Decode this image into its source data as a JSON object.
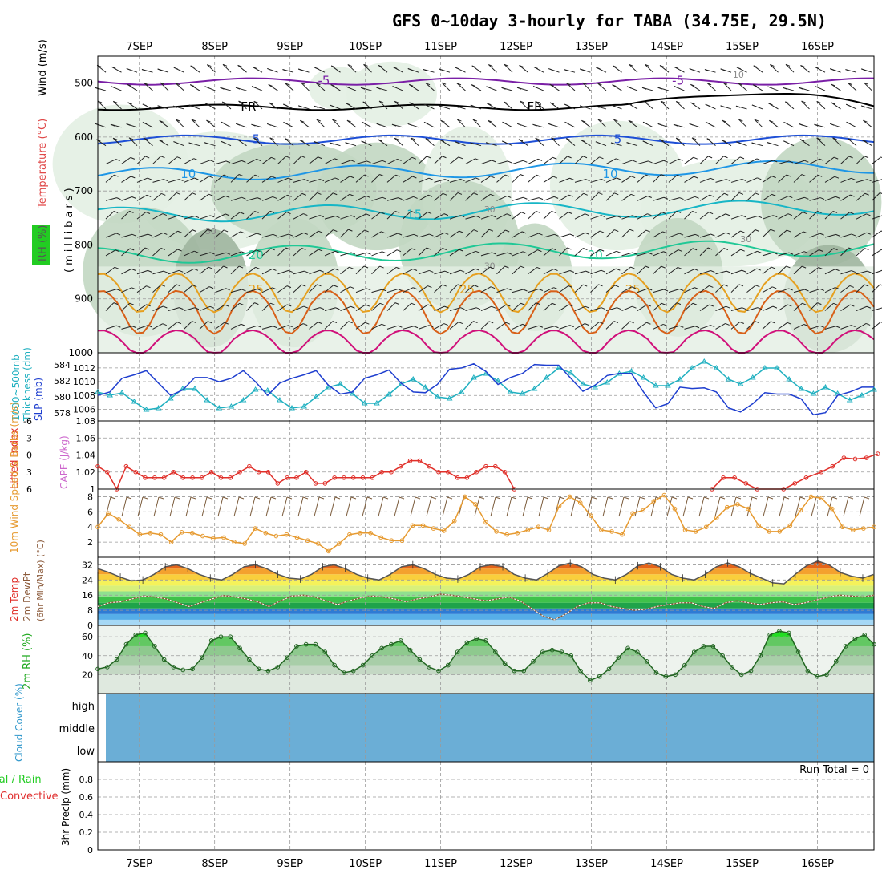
{
  "title": "GFS 0~10day 3-hourly for TABA (34.75E, 29.5N)",
  "dates": [
    "7SEP",
    "8SEP",
    "9SEP",
    "10SEP",
    "11SEP",
    "12SEP",
    "13SEP",
    "14SEP",
    "15SEP",
    "16SEP"
  ],
  "colors": {
    "purple": "#7a1fa6",
    "black": "#000000",
    "blue": "#1e4fd6",
    "skyblue": "#1e96e6",
    "cyan": "#17b6c6",
    "teal": "#20c896",
    "orange": "#e6a020",
    "darkorange": "#d86018",
    "magenta": "#d0107a",
    "rhfill1": "#e3efe3",
    "rhfill2": "#c2d7c2",
    "rhfill3": "#9fb59f",
    "slp": "#1f3fcf",
    "thick": "#20b0c0",
    "li": "#e0302a",
    "wind": "#e69a30",
    "barb": "#7a5a3a",
    "rh2m": "#22cc22",
    "cloud": "#6baed6",
    "dew": "#8b5a3a"
  },
  "chart_data": [
    {
      "type": "contour",
      "panel": "upper-air",
      "title": "Temperature (°C) / Wind (m/s) / RH (%)",
      "ylabel_parts": [
        "RH (%)",
        "Temperature (°C)",
        "Wind (m/s)"
      ],
      "ylabel2": "(millibars)",
      "yticks": [
        500,
        600,
        700,
        800,
        900,
        1000
      ],
      "ylim": [
        450,
        1000
      ],
      "isotherms": [
        {
          "label": "-5",
          "level": 497,
          "amp": 6,
          "color_key": "purple",
          "labels": [
            {
              "text": "-5",
              "day": 3.0
            },
            {
              "text": "-5",
              "day": 7.7
            }
          ]
        },
        {
          "label": "FR",
          "level": 545,
          "amp": 5,
          "color_key": "black",
          "labels": [
            {
              "text": "FR",
              "day": 2.0
            },
            {
              "text": "FR",
              "day": 5.8
            }
          ]
        },
        {
          "label": "5",
          "level": 605,
          "amp": 8,
          "color_key": "blue",
          "labels": [
            {
              "text": "5",
              "day": 2.1
            },
            {
              "text": "5",
              "day": 6.9
            }
          ]
        },
        {
          "label": "10",
          "level": 670,
          "amp": 12,
          "color_key": "skyblue",
          "labels": [
            {
              "text": "10",
              "day": 1.2
            },
            {
              "text": "10",
              "day": 6.8
            }
          ]
        },
        {
          "label": "15",
          "level": 745,
          "amp": 14,
          "color_key": "cyan",
          "labels": [
            {
              "text": "15",
              "day": 4.2
            }
          ]
        },
        {
          "label": "20",
          "level": 820,
          "amp": 15,
          "color_key": "teal",
          "labels": [
            {
              "text": "20",
              "day": 2.1
            },
            {
              "text": "20",
              "day": 6.6
            }
          ]
        },
        {
          "label": "25",
          "level": 880,
          "amp": 45,
          "color_key": "orange",
          "labels": [
            {
              "text": "25",
              "day": 4.9
            },
            {
              "text": "25",
              "day": 2.1
            },
            {
              "text": "25",
              "day": 7.1
            }
          ]
        },
        {
          "label": "30",
          "level": 915,
          "amp": 50,
          "color_key": "darkorange",
          "labels": []
        },
        {
          "label": "35",
          "level": 975,
          "amp": 28,
          "color_key": "magenta",
          "labels": []
        }
      ],
      "rh_labels": [
        {
          "text": "10",
          "day": 8.5,
          "p": 490
        },
        {
          "text": "30",
          "day": 1.5,
          "p": 780
        },
        {
          "text": "30",
          "day": 8.6,
          "p": 795
        },
        {
          "text": "30",
          "day": 5.2,
          "p": 740
        },
        {
          "text": "30",
          "day": 5.2,
          "p": 845
        }
      ]
    },
    {
      "type": "line",
      "panel": "slp-thickness",
      "ylabel_left": "Thickness (dm)",
      "ylabel_left_top": "1000~500mb",
      "ylabel_right": "SLP (mb)",
      "thickness_ticks": [
        578,
        580,
        582,
        584
      ],
      "slp_ticks": [
        1006,
        1008,
        1010,
        1012
      ],
      "thickness_range": [
        577,
        585.5
      ],
      "slp_range": [
        1004.3,
        1014.2
      ],
      "slp": [
        1008,
        1008.5,
        1010.5,
        1011,
        1011.6,
        1009.8,
        1008,
        1008.8,
        1010.6,
        1010.6,
        1010,
        1010.5,
        1011.6,
        1010,
        1008,
        1009.8,
        1010.5,
        1011,
        1011.6,
        1009.5,
        1008.2,
        1008.5,
        1010.5,
        1011,
        1011.7,
        1009.8,
        1008.5,
        1008.4,
        1009.6,
        1011.8,
        1012,
        1012.6,
        1011.5,
        1009.6,
        1010.6,
        1011.2,
        1012.5,
        1012.4,
        1012.4,
        1010.5,
        1008.6,
        1009.5,
        1010.9,
        1011.2,
        1011.2,
        1008.5,
        1006.2,
        1006.8,
        1009.2,
        1009,
        1009.1,
        1008.5,
        1006.2,
        1005.6,
        1006.8,
        1008.4,
        1008.2,
        1008.2,
        1007.5,
        1005.2,
        1005.5,
        1008,
        1008.5,
        1009.2,
        1009.2
      ],
      "thickness": [
        580.6,
        580.2,
        580.5,
        579.4,
        578.4,
        578.6,
        579.8,
        581,
        581,
        579.6,
        578.6,
        578.8,
        579.6,
        580.9,
        580.8,
        579.6,
        578.6,
        578.8,
        580,
        581.2,
        581.6,
        580.4,
        579.2,
        579.2,
        580.3,
        581.6,
        582.2,
        581.2,
        580,
        579.8,
        580.6,
        582.4,
        582.9,
        582,
        580.6,
        580.4,
        581,
        582.4,
        583.6,
        583,
        581.6,
        581.2,
        581.8,
        582.9,
        583.2,
        582.4,
        581.4,
        581.4,
        582.2,
        583.6,
        584.4,
        583.6,
        582.2,
        581.6,
        582.4,
        583.6,
        583.6,
        582.2,
        581,
        580.4,
        581.2,
        580.4,
        579.6,
        580.2,
        580.9
      ]
    },
    {
      "type": "line",
      "panel": "lifted-index-cape",
      "ylabel_left": "Lifted Index",
      "ylabel_right": "CAPE (J/kg)",
      "li_ticks": [
        -6,
        -3,
        0,
        3,
        6
      ],
      "cape_ticks": [
        1,
        1.02,
        1.04,
        1.06,
        1.08
      ],
      "li_range": [
        -6,
        6
      ],
      "lifted_index": [
        2,
        3,
        6,
        2,
        3,
        4,
        4,
        4,
        3,
        4,
        4,
        4,
        3,
        4,
        4,
        3,
        2,
        3,
        3,
        5,
        4,
        4,
        3,
        5,
        5,
        4,
        4,
        4,
        4,
        4,
        3,
        3,
        2,
        1,
        1,
        2,
        3,
        3,
        4,
        4,
        3,
        2,
        2,
        3,
        6,
        null,
        null,
        null,
        null,
        null,
        null,
        null,
        null,
        null,
        null,
        null,
        null,
        null,
        null,
        null,
        null,
        null,
        null,
        null,
        null,
        null,
        null,
        null,
        null,
        null,
        null,
        null,
        null,
        null,
        null,
        null,
        null,
        null,
        null,
        null,
        null,
        null,
        null,
        null,
        null,
        null,
        null,
        null,
        null,
        null
      ],
      "li_late": [
        {
          "day": 8.15,
          "li": 6
        },
        {
          "day": 8.3,
          "li": 4
        },
        {
          "day": 8.45,
          "li": 4
        },
        {
          "day": 8.6,
          "li": 5
        },
        {
          "day": 8.75,
          "li": 6
        },
        {
          "day": 9.1,
          "li": 6
        },
        {
          "day": 9.25,
          "li": 5
        },
        {
          "day": 9.4,
          "li": 4
        },
        {
          "day": 9.6,
          "li": 3
        },
        {
          "day": 9.75,
          "li": 2
        },
        {
          "day": 9.9,
          "li": 0.5
        },
        {
          "day": 10.05,
          "li": 0.7
        },
        {
          "day": 10.2,
          "li": 0.5
        },
        {
          "day": 10.35,
          "li": -0.2
        }
      ]
    },
    {
      "type": "line",
      "panel": "10m-wind",
      "ylabel": "10m Wind Speed & Barbs (m/s)",
      "yticks": [
        2,
        4,
        6,
        8
      ],
      "ylim": [
        0,
        9
      ],
      "speed": [
        4,
        5.8,
        5,
        4,
        3,
        3.2,
        3,
        2,
        3.3,
        3.2,
        2.8,
        2.5,
        2.6,
        2,
        1.8,
        3.8,
        3.2,
        2.8,
        3,
        2.6,
        2.2,
        1.8,
        0.8,
        1.8,
        3,
        3.2,
        3.2,
        2.6,
        2.2,
        2.2,
        4.2,
        4.2,
        3.8,
        3.5,
        4.8,
        8,
        7,
        4.6,
        3.4,
        3,
        3.2,
        3.6,
        4,
        3.6,
        6.8,
        8,
        7.2,
        5.5,
        3.6,
        3.4,
        3,
        5.8,
        6.2,
        7.4,
        8.2,
        6.4,
        3.6,
        3.4,
        4,
        5.2,
        6.6,
        7,
        6.4,
        4.2,
        3.4,
        3.4,
        4.2,
        6.2,
        8,
        7.8,
        6.4,
        4,
        3.6,
        3.8,
        4
      ]
    },
    {
      "type": "area",
      "panel": "2m-temp",
      "ylabel_parts": [
        "2m Temp",
        "2m DewPt",
        "(6hr Min/Max) (°C)"
      ],
      "yticks": [
        0,
        8,
        16,
        24,
        32
      ],
      "ylim": [
        0,
        36
      ],
      "temp": [
        30,
        28,
        25.5,
        23.5,
        24,
        27,
        31,
        32,
        30,
        27,
        25,
        24,
        27,
        31,
        32,
        30,
        27,
        25,
        24.5,
        27,
        31,
        32,
        30,
        27,
        25,
        24,
        27,
        31,
        32,
        30,
        27,
        25,
        24.5,
        27,
        31,
        32,
        31,
        27,
        25,
        24,
        27.5,
        31.5,
        33,
        31,
        27,
        25,
        24,
        27,
        31.5,
        33,
        31,
        27,
        25,
        24,
        27,
        31,
        33,
        31,
        27.5,
        25,
        22.5,
        22,
        27,
        31.5,
        34,
        32,
        28,
        26,
        25,
        27
      ],
      "dewpoint": [
        10,
        12,
        12.5,
        14,
        15.5,
        15,
        14,
        12,
        10,
        12,
        14,
        15.8,
        15,
        14,
        12.5,
        10,
        13,
        15.5,
        16,
        15,
        13,
        11,
        13,
        14.5,
        15.5,
        15,
        14,
        12.5,
        14,
        15,
        16.5,
        16,
        15,
        14,
        13,
        14,
        15,
        13,
        9,
        5,
        3,
        6,
        10,
        12,
        12,
        10,
        9,
        8,
        8.5,
        10,
        11,
        12,
        12,
        10,
        9,
        12,
        13,
        12,
        11,
        12,
        12.5,
        11,
        12,
        13.5,
        15,
        16,
        15.5,
        15,
        16
      ]
    },
    {
      "type": "area",
      "panel": "2m-rh",
      "ylabel": "2m RH (%)",
      "yticks": [
        20,
        40,
        60
      ],
      "ylim": [
        0,
        72
      ],
      "rh": [
        26,
        28,
        36,
        52,
        62,
        64,
        50,
        36,
        28,
        25,
        26,
        38,
        56,
        60,
        60,
        48,
        36,
        26,
        24,
        28,
        38,
        50,
        52,
        52,
        44,
        30,
        22,
        24,
        30,
        40,
        48,
        52,
        56,
        46,
        36,
        28,
        24,
        30,
        44,
        54,
        58,
        56,
        44,
        32,
        24,
        24,
        34,
        44,
        46,
        44,
        40,
        24,
        14,
        18,
        26,
        38,
        48,
        44,
        34,
        22,
        18,
        20,
        30,
        44,
        50,
        50,
        40,
        28,
        20,
        24,
        40,
        62,
        66,
        64,
        44,
        24,
        18,
        20,
        34,
        50,
        58,
        62,
        52
      ]
    },
    {
      "type": "bar",
      "panel": "cloud-cover",
      "ylabel": "Cloud Cover (%)",
      "levels": [
        "high",
        "middle",
        "low"
      ]
    },
    {
      "type": "bar",
      "panel": "3hr-precip",
      "ylabel": "3hr Precip (mm)",
      "ylabel_parts": [
        "Total / Rain",
        "Convective"
      ],
      "yticks": [
        0,
        0.2,
        0.4,
        0.6,
        0.8
      ],
      "ylim": [
        0,
        1.0
      ],
      "run_total_label": "Run Total = 0",
      "values": []
    }
  ]
}
